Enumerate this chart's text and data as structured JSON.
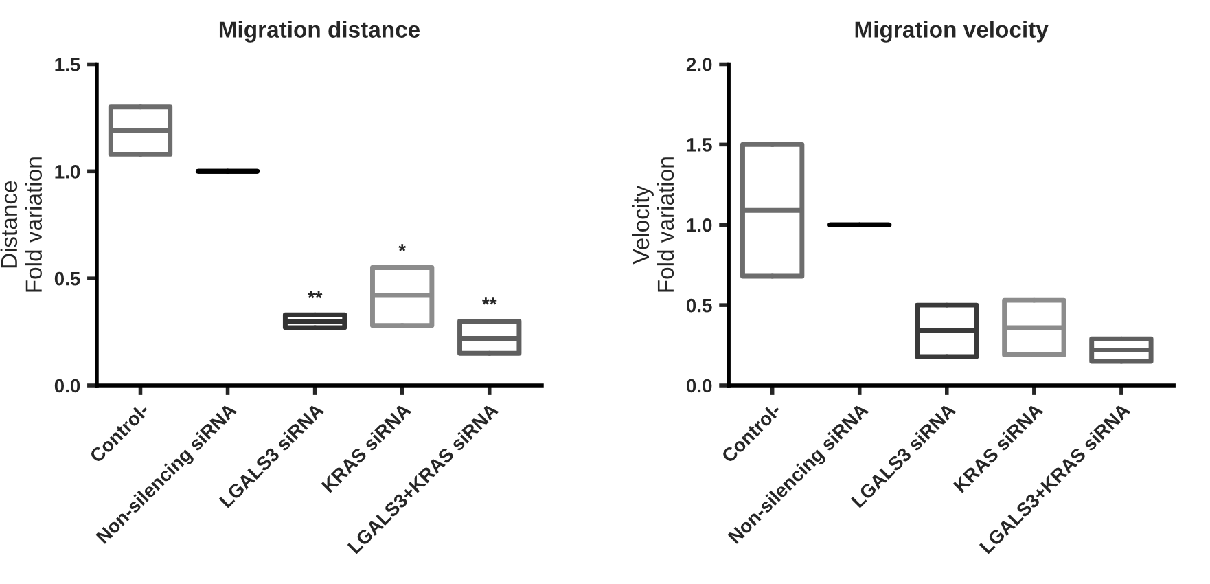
{
  "chart_data": [
    {
      "type": "box",
      "title": "Migration distance",
      "ylabel": "Distance\nFold variation",
      "categories": [
        "Control-",
        "Non-silencing siRNA",
        "LGALS3 siRNA",
        "KRAS siRNA",
        "LGALS3+KRAS siRNA"
      ],
      "boxes": [
        {
          "low": 1.08,
          "q1": 1.08,
          "median": 1.19,
          "q3": 1.3,
          "high": 1.3
        },
        {
          "low": 1.0,
          "q1": 1.0,
          "median": 1.0,
          "q3": 1.0,
          "high": 1.0
        },
        {
          "low": 0.27,
          "q1": 0.27,
          "median": 0.3,
          "q3": 0.33,
          "high": 0.33
        },
        {
          "low": 0.28,
          "q1": 0.28,
          "median": 0.42,
          "q3": 0.55,
          "high": 0.55
        },
        {
          "low": 0.15,
          "q1": 0.15,
          "median": 0.22,
          "q3": 0.3,
          "high": 0.3
        }
      ],
      "colors": [
        "#6d6d6d",
        "#000000",
        "#333333",
        "#8c8c8c",
        "#5f5f5f"
      ],
      "ylim": [
        0,
        1.5
      ],
      "yticks": [
        {
          "value": 0,
          "label": "0.0"
        },
        {
          "value": 0.5,
          "label": "0.5"
        },
        {
          "value": 1,
          "label": "1.0"
        },
        {
          "value": 1.5,
          "label": "1.5"
        }
      ],
      "annotations": [
        {
          "text": "**",
          "x": "LGALS3 siRNA",
          "y": 0.36
        },
        {
          "text": "*",
          "x": "KRAS siRNA",
          "y": 0.58
        },
        {
          "text": "**",
          "x": "LGALS3+KRAS siRNA",
          "y": 0.33
        }
      ],
      "grid": false,
      "legend": false
    },
    {
      "type": "box",
      "title": "Migration velocity",
      "ylabel": "Velocity\nFold variation",
      "categories": [
        "Control-",
        "Non-silencing siRNA",
        "LGALS3 siRNA",
        "KRAS siRNA",
        "LGALS3+KRAS siRNA"
      ],
      "boxes": [
        {
          "low": 0.68,
          "q1": 0.68,
          "median": 1.09,
          "q3": 1.5,
          "high": 1.5
        },
        {
          "low": 1.0,
          "q1": 1.0,
          "median": 1.0,
          "q3": 1.0,
          "high": 1.0
        },
        {
          "low": 0.18,
          "q1": 0.18,
          "median": 0.34,
          "q3": 0.5,
          "high": 0.5
        },
        {
          "low": 0.19,
          "q1": 0.19,
          "median": 0.36,
          "q3": 0.53,
          "high": 0.53
        },
        {
          "low": 0.15,
          "q1": 0.15,
          "median": 0.22,
          "q3": 0.29,
          "high": 0.29
        }
      ],
      "colors": [
        "#6d6d6d",
        "#000000",
        "#3a3a3a",
        "#8c8c8c",
        "#5f5f5f"
      ],
      "ylim": [
        0,
        2.0
      ],
      "yticks": [
        {
          "value": 0,
          "label": "0.0"
        },
        {
          "value": 0.5,
          "label": "0.5"
        },
        {
          "value": 1,
          "label": "1.0"
        },
        {
          "value": 1.5,
          "label": "1.5"
        },
        {
          "value": 2,
          "label": "2.0"
        }
      ],
      "grid": false,
      "legend": false
    }
  ]
}
